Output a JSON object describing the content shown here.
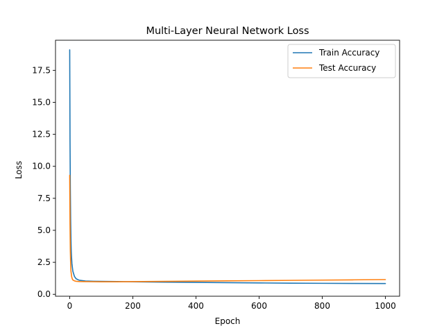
{
  "chart_data": {
    "type": "line",
    "title": "Multi-Layer Neural Network Loss",
    "xlabel": "Epoch",
    "ylabel": "Loss",
    "xlim": [
      -45,
      1045
    ],
    "ylim": [
      -0.15,
      19.85
    ],
    "xticks": [
      0,
      200,
      400,
      600,
      800,
      1000
    ],
    "yticks": [
      0.0,
      2.5,
      5.0,
      7.5,
      10.0,
      12.5,
      15.0,
      17.5
    ],
    "ytick_labels": [
      "0.0",
      "2.5",
      "5.0",
      "7.5",
      "10.0",
      "12.5",
      "15.0",
      "17.5"
    ],
    "grid": false,
    "legend_position": "top-right",
    "series": [
      {
        "name": "Train Accuracy",
        "color": "#1f77b4",
        "x": [
          0,
          1,
          2,
          3,
          4,
          5,
          7,
          10,
          15,
          20,
          30,
          50,
          75,
          100,
          150,
          200,
          300,
          400,
          500,
          600,
          700,
          800,
          900,
          1000
        ],
        "y": [
          19.1,
          12.0,
          8.2,
          5.8,
          4.2,
          3.3,
          2.4,
          1.8,
          1.4,
          1.22,
          1.1,
          1.04,
          1.02,
          1.01,
          1.0,
          0.98,
          0.95,
          0.93,
          0.91,
          0.89,
          0.87,
          0.86,
          0.85,
          0.84
        ]
      },
      {
        "name": "Test Accuracy",
        "color": "#ff7f0e",
        "x": [
          0,
          1,
          2,
          3,
          4,
          6,
          8,
          10,
          15,
          20,
          30,
          50,
          100,
          150,
          200,
          300,
          400,
          500,
          600,
          700,
          800,
          900,
          1000
        ],
        "y": [
          9.3,
          5.5,
          3.4,
          2.4,
          1.8,
          1.4,
          1.22,
          1.12,
          1.05,
          1.02,
          1.0,
          0.99,
          0.98,
          0.98,
          0.99,
          1.01,
          1.03,
          1.05,
          1.07,
          1.09,
          1.11,
          1.13,
          1.15
        ]
      }
    ]
  }
}
